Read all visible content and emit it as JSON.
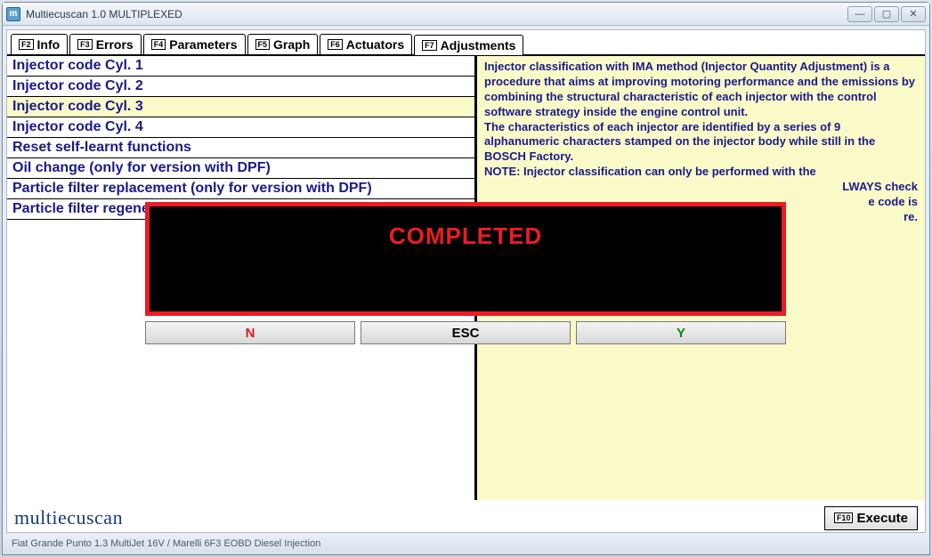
{
  "window": {
    "title": "Multiecuscan 1.0 MULTIPLEXED"
  },
  "tabs": [
    {
      "fkey": "F2",
      "label": "Info"
    },
    {
      "fkey": "F3",
      "label": "Errors"
    },
    {
      "fkey": "F4",
      "label": "Parameters"
    },
    {
      "fkey": "F5",
      "label": "Graph"
    },
    {
      "fkey": "F6",
      "label": "Actuators"
    },
    {
      "fkey": "F7",
      "label": "Adjustments"
    }
  ],
  "active_tab_index": 5,
  "adjustments": {
    "items": [
      "Injector code Cyl. 1",
      "Injector code Cyl. 2",
      "Injector code Cyl. 3",
      "Injector code Cyl. 4",
      "Reset self-learnt functions",
      "Oil change (only for version with DPF)",
      "Particle filter replacement (only for version with DPF)",
      "Particle filter regeneration"
    ],
    "selected_index": 2
  },
  "description": {
    "para1": "Injector classification with IMA method (Injector Quantity Adjustment) is a procedure that aims at improving motoring performance and the emissions by combining the structural characteristic of each injector with the control software strategy inside the engine control unit.",
    "para2": "The characteristics of each injector are identified by a series of 9 alphanumeric characters stamped on the injector body while still in the BOSCH Factory.",
    "para3": "NOTE: Injector classification can only be performed with the",
    "para4_tail1": "LWAYS check",
    "para4_tail2": "e code is",
    "para4_tail3": "re."
  },
  "modal": {
    "message": "COMPLETED",
    "btn_n": "N",
    "btn_esc": "ESC",
    "btn_y": "Y"
  },
  "footer": {
    "brand": "multiecuscan",
    "execute_fkey": "F10",
    "execute_label": "Execute"
  },
  "statusbar": "Fiat Grande Punto 1.3 MultiJet 16V / Marelli 6F3 EOBD Diesel Injection",
  "colors": {
    "accent_blue": "#1a1a8a",
    "highlight_bg": "#fafac8",
    "modal_border": "#ed1c24",
    "modal_bg": "#000000",
    "btn_y": "#0a8a0a",
    "btn_n": "#d02020"
  }
}
